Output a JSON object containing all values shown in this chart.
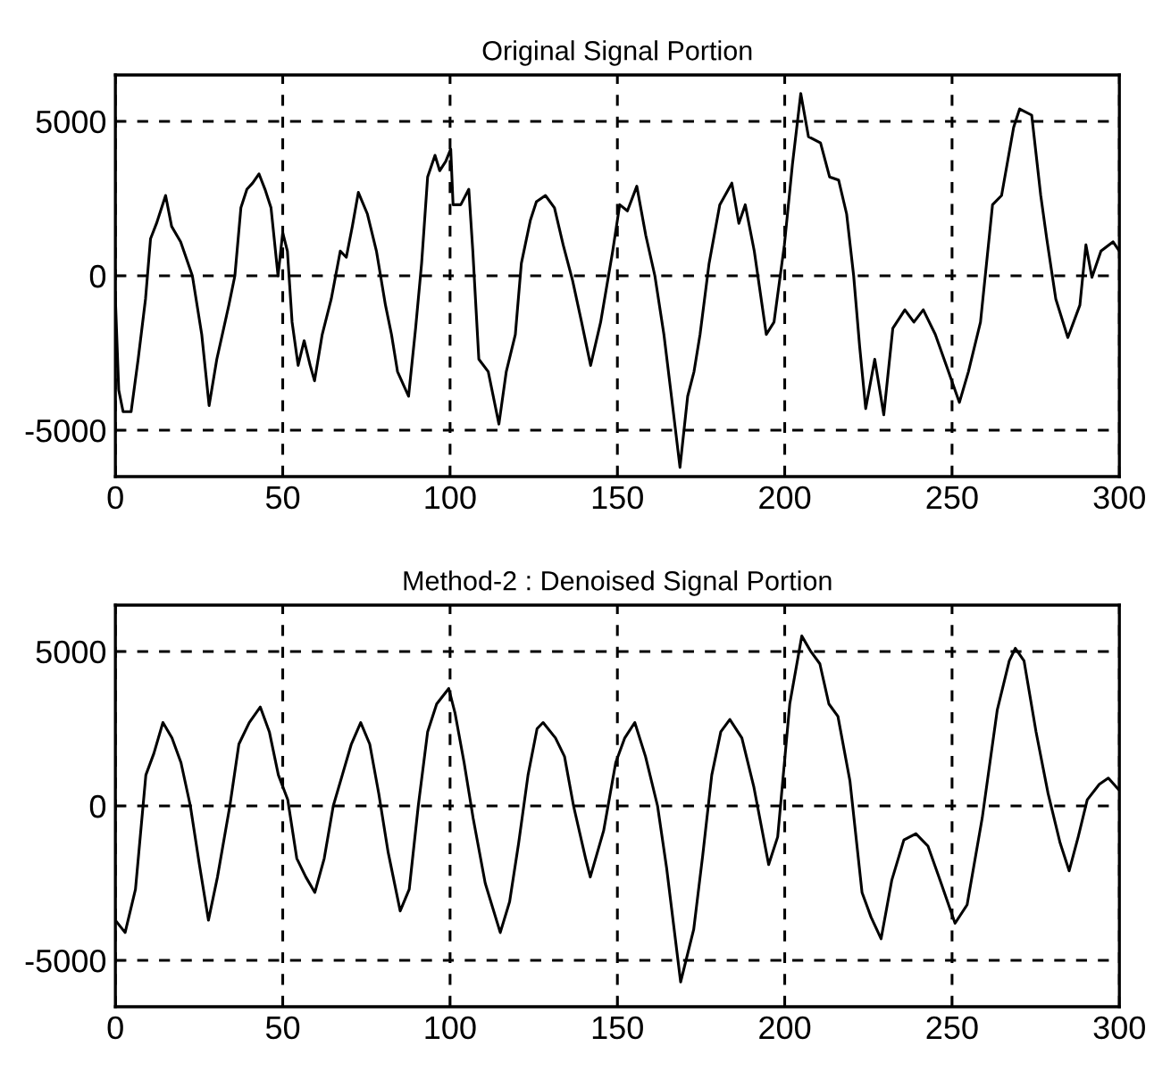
{
  "chart_data": [
    {
      "type": "line",
      "title": "Original Signal Portion",
      "xlim": [
        0,
        300
      ],
      "ylim": [
        -6500,
        6500
      ],
      "xticks": [
        0,
        50,
        100,
        150,
        200,
        250,
        300
      ],
      "yticks": [
        -5000,
        0,
        5000
      ],
      "grid": true,
      "line_style": "solid",
      "series": [
        {
          "color": "#000000",
          "x": [
            0,
            1,
            2.3,
            4.7,
            6.8,
            9,
            10.5,
            12.3,
            15,
            16.8,
            19.5,
            23,
            25.8,
            28,
            30.3,
            33.9,
            35.7,
            37.5,
            39.3,
            41,
            42.9,
            44.7,
            46.5,
            48.6,
            50,
            51.4,
            52.8,
            54.6,
            56.4,
            58.2,
            59.5,
            61.8,
            64.5,
            67.2,
            69,
            70.8,
            72.6,
            75.3,
            78,
            80.7,
            82.5,
            84.3,
            87.6,
            89.7,
            91.5,
            93.3,
            95.5,
            96.9,
            98.7,
            100.2,
            100.9,
            103.2,
            105.6,
            106.8,
            108.6,
            111.4,
            114.6,
            116.8,
            119.5,
            121.3,
            124,
            125.8,
            128.5,
            131.2,
            133.8,
            136.6,
            139.3,
            142,
            145,
            148.6,
            150.7,
            153,
            155.8,
            158.5,
            161.2,
            163.9,
            166.6,
            168.7,
            171,
            172.9,
            174.7,
            177.4,
            180.6,
            184.2,
            186.3,
            188.2,
            190.9,
            194.5,
            196.8,
            199.9,
            202.3,
            204.8,
            207.1,
            210.7,
            213.4,
            216.1,
            218.5,
            220.6,
            222.4,
            224.2,
            226.9,
            229.6,
            232.3,
            235.9,
            238.6,
            241.4,
            245,
            248.6,
            252.2,
            254.9,
            258.5,
            262.1,
            264.8,
            268.4,
            270.2,
            273.8,
            276.5,
            278.3,
            281,
            284.6,
            288.2,
            290,
            291.8,
            294.5,
            298.1,
            300
          ],
          "values": [
            -750,
            -3700,
            -4400,
            -4400,
            -2700,
            -750,
            1200,
            1700,
            2600,
            1600,
            1100,
            0,
            -1900,
            -4200,
            -2700,
            -950,
            0,
            2200,
            2800,
            3000,
            3300,
            2800,
            2200,
            0,
            1400,
            800,
            -1500,
            -2900,
            -2100,
            -2900,
            -3400,
            -1900,
            -750,
            800,
            600,
            1600,
            2700,
            2000,
            800,
            -950,
            -1900,
            -3100,
            -3900,
            -1700,
            400,
            3200,
            3900,
            3400,
            3700,
            4100,
            2300,
            2300,
            2800,
            800,
            -2700,
            -3100,
            -4800,
            -3100,
            -1900,
            400,
            1800,
            2400,
            2600,
            2200,
            1000,
            -150,
            -1500,
            -2900,
            -1500,
            800,
            2300,
            2100,
            2900,
            1300,
            0,
            -1900,
            -4300,
            -6200,
            -3900,
            -3100,
            -1900,
            400,
            2300,
            3000,
            1700,
            2300,
            800,
            -1900,
            -1500,
            1000,
            3600,
            5900,
            4500,
            4300,
            3200,
            3100,
            2000,
            0,
            -2300,
            -4300,
            -2700,
            -4500,
            -1700,
            -1100,
            -1500,
            -1100,
            -1900,
            -3000,
            -4100,
            -3100,
            -1500,
            2300,
            2600,
            4800,
            5400,
            5200,
            2600,
            1200,
            -750,
            -2000,
            -950,
            1000,
            -50,
            800,
            1100,
            800
          ]
        }
      ]
    },
    {
      "type": "line",
      "title": "Method-2 : Denoised Signal Portion",
      "xlim": [
        0,
        300
      ],
      "ylim": [
        -6500,
        6500
      ],
      "xticks": [
        0,
        50,
        100,
        150,
        200,
        250,
        300
      ],
      "yticks": [
        -5000,
        0,
        5000
      ],
      "grid": true,
      "line_style": "solid",
      "series": [
        {
          "color": "#000000",
          "x": [
            0,
            2.9,
            6,
            9.1,
            11.5,
            14.2,
            16.9,
            19.6,
            22.4,
            25.1,
            27.8,
            30.5,
            34.2,
            36.9,
            40,
            43.3,
            46,
            48.7,
            51.5,
            54.2,
            56.9,
            59.6,
            62.4,
            65.1,
            67.8,
            70.5,
            73.3,
            76,
            78.7,
            81.5,
            85.1,
            87.8,
            90.5,
            93.3,
            96,
            99.6,
            101.5,
            104.2,
            106.9,
            110.5,
            115,
            117.8,
            120.5,
            123.3,
            126,
            127.8,
            131.5,
            134.2,
            136.9,
            140.5,
            141.9,
            145.9,
            149.5,
            152.2,
            155.2,
            158.4,
            162,
            164.7,
            168.9,
            172.8,
            175.5,
            178.2,
            180.9,
            183.6,
            187.2,
            190.8,
            195.2,
            197.9,
            201.5,
            205.1,
            207.8,
            210.5,
            213.2,
            215.9,
            219.5,
            223.1,
            225.8,
            228.8,
            232,
            235.6,
            239.2,
            242.8,
            246.4,
            250.9,
            254.5,
            259,
            263.5,
            267.1,
            268.9,
            271.5,
            275.1,
            278.7,
            282.3,
            285,
            287.7,
            290.4,
            294,
            296.7,
            300
          ],
          "values": [
            -3700,
            -4100,
            -2700,
            1000,
            1700,
            2700,
            2200,
            1400,
            0,
            -1900,
            -3700,
            -2300,
            0,
            2000,
            2700,
            3200,
            2400,
            1000,
            200,
            -1700,
            -2300,
            -2800,
            -1700,
            0,
            1000,
            2000,
            2700,
            2000,
            400,
            -1500,
            -3400,
            -2700,
            0,
            2400,
            3300,
            3800,
            3000,
            1400,
            -400,
            -2500,
            -4100,
            -3100,
            -1200,
            1000,
            2500,
            2700,
            2200,
            1600,
            0,
            -1700,
            -2300,
            -800,
            1400,
            2200,
            2700,
            1600,
            0,
            -2000,
            -5700,
            -4000,
            -1600,
            1000,
            2400,
            2800,
            2200,
            600,
            -1900,
            -1000,
            3300,
            5500,
            5000,
            4600,
            3300,
            2900,
            800,
            -2800,
            -3600,
            -4300,
            -2400,
            -1100,
            -900,
            -1300,
            -2400,
            -3800,
            -3200,
            -400,
            3100,
            4700,
            5100,
            4700,
            2400,
            400,
            -1200,
            -2100,
            -1000,
            200,
            700,
            900,
            500
          ]
        }
      ]
    }
  ]
}
